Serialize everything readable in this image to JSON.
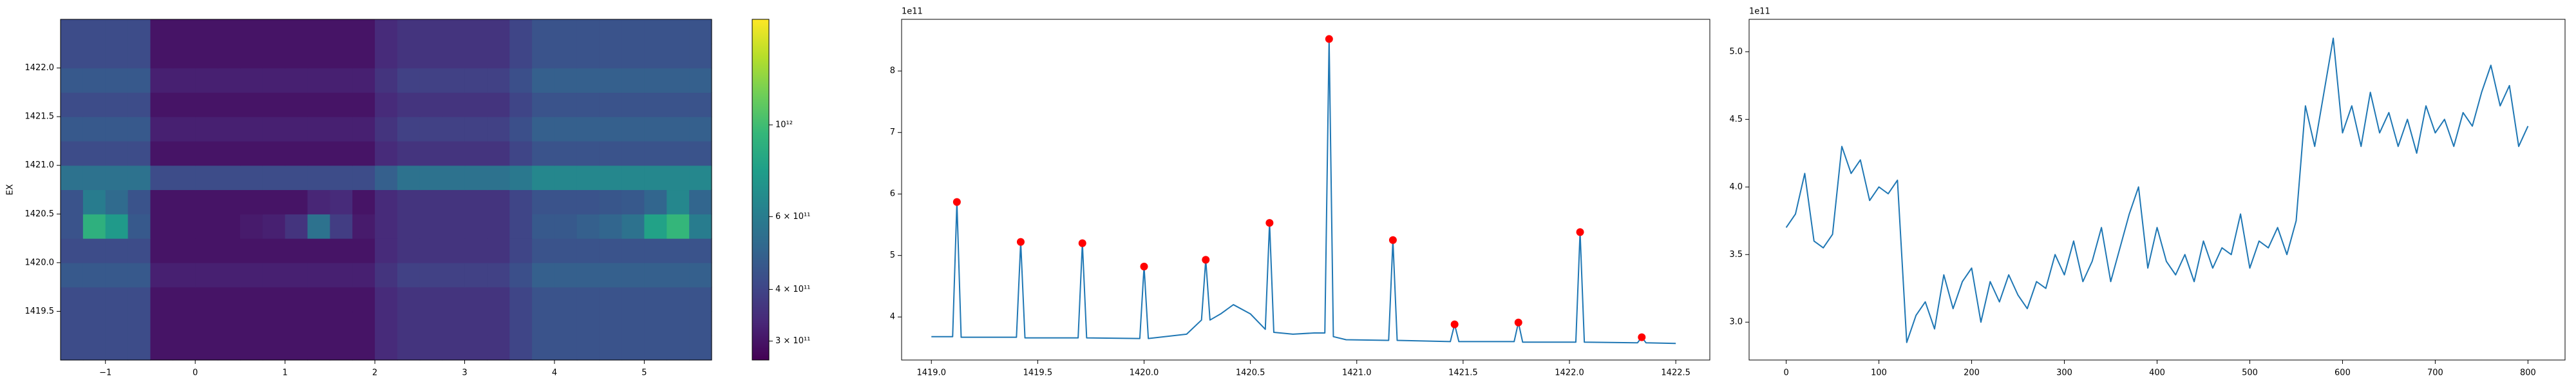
{
  "chart_data": [
    {
      "type": "heatmap",
      "ylabel": "EX",
      "colormap": "viridis",
      "xlim": [
        -1.5,
        5.75
      ],
      "ylim": [
        1419.0,
        1422.5
      ],
      "xticks": [
        {
          "value": -1,
          "label": "−1"
        },
        0,
        1,
        2,
        3,
        4,
        5
      ],
      "yticks": [
        1419.5,
        {
          "value": 1420,
          "label": "1420.0"
        },
        1420.5,
        {
          "value": 1421,
          "label": "1421.0"
        },
        1421.5,
        {
          "value": 1422,
          "label": "1422.0"
        }
      ],
      "z": [
        [
          420000000000.0,
          420000000000.0,
          420000000000.0,
          420000000000.0,
          300000000000.0,
          300000000000.0,
          300000000000.0,
          300000000000.0,
          300000000000.0,
          300000000000.0,
          300000000000.0,
          300000000000.0,
          300000000000.0,
          300000000000.0,
          340000000000.0,
          360000000000.0,
          360000000000.0,
          360000000000.0,
          360000000000.0,
          360000000000.0,
          400000000000.0,
          440000000000.0,
          440000000000.0,
          440000000000.0,
          440000000000.0,
          440000000000.0,
          440000000000.0,
          440000000000.0,
          440000000000.0
        ],
        [
          420000000000.0,
          420000000000.0,
          420000000000.0,
          420000000000.0,
          300000000000.0,
          300000000000.0,
          300000000000.0,
          300000000000.0,
          300000000000.0,
          300000000000.0,
          300000000000.0,
          300000000000.0,
          300000000000.0,
          300000000000.0,
          340000000000.0,
          360000000000.0,
          360000000000.0,
          360000000000.0,
          360000000000.0,
          360000000000.0,
          400000000000.0,
          440000000000.0,
          440000000000.0,
          440000000000.0,
          440000000000.0,
          440000000000.0,
          440000000000.0,
          440000000000.0,
          440000000000.0
        ],
        [
          420000000000.0,
          420000000000.0,
          420000000000.0,
          420000000000.0,
          300000000000.0,
          300000000000.0,
          300000000000.0,
          300000000000.0,
          300000000000.0,
          300000000000.0,
          300000000000.0,
          300000000000.0,
          300000000000.0,
          300000000000.0,
          340000000000.0,
          360000000000.0,
          360000000000.0,
          360000000000.0,
          360000000000.0,
          360000000000.0,
          400000000000.0,
          440000000000.0,
          440000000000.0,
          440000000000.0,
          440000000000.0,
          440000000000.0,
          440000000000.0,
          440000000000.0,
          440000000000.0
        ],
        [
          460000000000.0,
          460000000000.0,
          460000000000.0,
          460000000000.0,
          320000000000.0,
          320000000000.0,
          320000000000.0,
          320000000000.0,
          320000000000.0,
          320000000000.0,
          320000000000.0,
          320000000000.0,
          320000000000.0,
          320000000000.0,
          360000000000.0,
          390000000000.0,
          390000000000.0,
          390000000000.0,
          390000000000.0,
          390000000000.0,
          430000000000.0,
          480000000000.0,
          480000000000.0,
          480000000000.0,
          480000000000.0,
          480000000000.0,
          480000000000.0,
          480000000000.0,
          480000000000.0
        ],
        [
          420000000000.0,
          420000000000.0,
          420000000000.0,
          420000000000.0,
          300000000000.0,
          300000000000.0,
          300000000000.0,
          300000000000.0,
          300000000000.0,
          300000000000.0,
          300000000000.0,
          300000000000.0,
          300000000000.0,
          300000000000.0,
          340000000000.0,
          360000000000.0,
          360000000000.0,
          360000000000.0,
          360000000000.0,
          360000000000.0,
          400000000000.0,
          440000000000.0,
          440000000000.0,
          440000000000.0,
          440000000000.0,
          440000000000.0,
          440000000000.0,
          440000000000.0,
          440000000000.0
        ],
        [
          440000000000.0,
          900000000000.0,
          750000000000.0,
          460000000000.0,
          300000000000.0,
          300000000000.0,
          300000000000.0,
          300000000000.0,
          310000000000.0,
          320000000000.0,
          360000000000.0,
          550000000000.0,
          380000000000.0,
          310000000000.0,
          340000000000.0,
          360000000000.0,
          360000000000.0,
          360000000000.0,
          360000000000.0,
          360000000000.0,
          400000000000.0,
          460000000000.0,
          460000000000.0,
          480000000000.0,
          500000000000.0,
          550000000000.0,
          800000000000.0,
          950000000000.0,
          600000000000.0
        ],
        [
          440000000000.0,
          600000000000.0,
          520000000000.0,
          440000000000.0,
          300000000000.0,
          300000000000.0,
          300000000000.0,
          300000000000.0,
          300000000000.0,
          300000000000.0,
          300000000000.0,
          330000000000.0,
          340000000000.0,
          300000000000.0,
          340000000000.0,
          360000000000.0,
          360000000000.0,
          360000000000.0,
          360000000000.0,
          360000000000.0,
          400000000000.0,
          440000000000.0,
          440000000000.0,
          440000000000.0,
          450000000000.0,
          460000000000.0,
          500000000000.0,
          650000000000.0,
          500000000000.0
        ],
        [
          550000000000.0,
          550000000000.0,
          550000000000.0,
          550000000000.0,
          420000000000.0,
          420000000000.0,
          420000000000.0,
          420000000000.0,
          420000000000.0,
          420000000000.0,
          420000000000.0,
          420000000000.0,
          420000000000.0,
          420000000000.0,
          480000000000.0,
          550000000000.0,
          550000000000.0,
          550000000000.0,
          550000000000.0,
          550000000000.0,
          580000000000.0,
          650000000000.0,
          650000000000.0,
          650000000000.0,
          650000000000.0,
          650000000000.0,
          650000000000.0,
          650000000000.0,
          650000000000.0
        ],
        [
          420000000000.0,
          420000000000.0,
          420000000000.0,
          420000000000.0,
          300000000000.0,
          300000000000.0,
          300000000000.0,
          300000000000.0,
          300000000000.0,
          300000000000.0,
          300000000000.0,
          300000000000.0,
          300000000000.0,
          300000000000.0,
          340000000000.0,
          360000000000.0,
          360000000000.0,
          360000000000.0,
          360000000000.0,
          360000000000.0,
          400000000000.0,
          440000000000.0,
          440000000000.0,
          440000000000.0,
          440000000000.0,
          440000000000.0,
          440000000000.0,
          440000000000.0,
          440000000000.0
        ],
        [
          460000000000.0,
          460000000000.0,
          460000000000.0,
          460000000000.0,
          320000000000.0,
          320000000000.0,
          320000000000.0,
          320000000000.0,
          320000000000.0,
          320000000000.0,
          320000000000.0,
          320000000000.0,
          320000000000.0,
          320000000000.0,
          360000000000.0,
          390000000000.0,
          390000000000.0,
          390000000000.0,
          390000000000.0,
          390000000000.0,
          430000000000.0,
          480000000000.0,
          480000000000.0,
          480000000000.0,
          480000000000.0,
          480000000000.0,
          480000000000.0,
          480000000000.0,
          480000000000.0
        ],
        [
          420000000000.0,
          420000000000.0,
          420000000000.0,
          420000000000.0,
          300000000000.0,
          300000000000.0,
          300000000000.0,
          300000000000.0,
          300000000000.0,
          300000000000.0,
          300000000000.0,
          300000000000.0,
          300000000000.0,
          300000000000.0,
          340000000000.0,
          360000000000.0,
          360000000000.0,
          360000000000.0,
          360000000000.0,
          360000000000.0,
          400000000000.0,
          440000000000.0,
          440000000000.0,
          440000000000.0,
          440000000000.0,
          440000000000.0,
          440000000000.0,
          440000000000.0,
          440000000000.0
        ],
        [
          460000000000.0,
          460000000000.0,
          460000000000.0,
          460000000000.0,
          320000000000.0,
          320000000000.0,
          320000000000.0,
          320000000000.0,
          320000000000.0,
          320000000000.0,
          320000000000.0,
          320000000000.0,
          320000000000.0,
          320000000000.0,
          360000000000.0,
          390000000000.0,
          390000000000.0,
          390000000000.0,
          390000000000.0,
          390000000000.0,
          430000000000.0,
          480000000000.0,
          480000000000.0,
          480000000000.0,
          480000000000.0,
          480000000000.0,
          480000000000.0,
          480000000000.0,
          480000000000.0
        ],
        [
          420000000000.0,
          420000000000.0,
          420000000000.0,
          420000000000.0,
          300000000000.0,
          300000000000.0,
          300000000000.0,
          300000000000.0,
          300000000000.0,
          300000000000.0,
          300000000000.0,
          300000000000.0,
          300000000000.0,
          300000000000.0,
          340000000000.0,
          360000000000.0,
          360000000000.0,
          360000000000.0,
          360000000000.0,
          360000000000.0,
          400000000000.0,
          440000000000.0,
          440000000000.0,
          440000000000.0,
          440000000000.0,
          440000000000.0,
          440000000000.0,
          440000000000.0,
          440000000000.0
        ],
        [
          420000000000.0,
          420000000000.0,
          420000000000.0,
          420000000000.0,
          300000000000.0,
          300000000000.0,
          300000000000.0,
          300000000000.0,
          300000000000.0,
          300000000000.0,
          300000000000.0,
          300000000000.0,
          300000000000.0,
          300000000000.0,
          340000000000.0,
          360000000000.0,
          360000000000.0,
          360000000000.0,
          360000000000.0,
          360000000000.0,
          400000000000.0,
          440000000000.0,
          440000000000.0,
          440000000000.0,
          440000000000.0,
          440000000000.0,
          440000000000.0,
          440000000000.0,
          440000000000.0
        ]
      ],
      "colorbar": {
        "scale": "log",
        "zlim": [
          270000000000.0,
          1800000000000.0
        ],
        "ticks": [
          {
            "value": 300000000000.0,
            "label": "3 × 10¹¹"
          },
          {
            "value": 400000000000.0,
            "label": "4 × 10¹¹"
          },
          {
            "value": 600000000000.0,
            "label": "6 × 10¹¹"
          },
          {
            "value": 1000000000000.0,
            "label": "10¹²"
          }
        ]
      }
    },
    {
      "type": "line",
      "y_offset_label": "1e11",
      "xlim": [
        1418.86,
        1422.66
      ],
      "ylim": [
        3.3,
        8.84
      ],
      "xticks": [
        {
          "value": 1419,
          "label": "1419.0"
        },
        1419.5,
        {
          "value": 1420,
          "label": "1420.0"
        },
        1420.5,
        {
          "value": 1421,
          "label": "1421.0"
        },
        1421.5,
        {
          "value": 1422,
          "label": "1422.0"
        },
        1422.5
      ],
      "yticks": [
        4,
        5,
        6,
        7,
        8
      ],
      "series": [
        {
          "style": "line",
          "color": "#1f77b4",
          "x": [
            1419.0,
            1419.1,
            1419.12,
            1419.14,
            1419.4,
            1419.42,
            1419.44,
            1419.69,
            1419.71,
            1419.73,
            1419.98,
            1420.0,
            1420.02,
            1420.2,
            1420.27,
            1420.29,
            1420.31,
            1420.36,
            1420.42,
            1420.5,
            1420.57,
            1420.59,
            1420.61,
            1420.7,
            1420.8,
            1420.85,
            1420.87,
            1420.89,
            1420.95,
            1421.15,
            1421.17,
            1421.19,
            1421.44,
            1421.46,
            1421.48,
            1421.74,
            1421.76,
            1421.78,
            1422.03,
            1422.05,
            1422.07,
            1422.32,
            1422.34,
            1422.36,
            1422.5
          ],
          "y": [
            3.68,
            3.68,
            5.87,
            3.67,
            3.67,
            5.22,
            3.66,
            3.66,
            5.2,
            3.66,
            3.65,
            4.82,
            3.65,
            3.72,
            3.95,
            4.93,
            3.95,
            4.05,
            4.2,
            4.05,
            3.8,
            5.53,
            3.75,
            3.72,
            3.74,
            3.74,
            8.52,
            3.68,
            3.63,
            3.62,
            5.25,
            3.62,
            3.6,
            3.88,
            3.6,
            3.6,
            3.91,
            3.59,
            3.59,
            5.38,
            3.59,
            3.58,
            3.67,
            3.58,
            3.57
          ]
        },
        {
          "style": "points",
          "color": "#ff0000",
          "x": [
            1419.12,
            1419.42,
            1419.71,
            1420.0,
            1420.29,
            1420.59,
            1420.87,
            1421.17,
            1421.46,
            1421.76,
            1422.05,
            1422.34
          ],
          "y": [
            5.87,
            5.22,
            5.2,
            4.82,
            4.93,
            5.53,
            8.52,
            5.25,
            3.88,
            3.91,
            5.38,
            3.67
          ]
        }
      ]
    },
    {
      "type": "line",
      "y_offset_label": "1e11",
      "xlim": [
        -40,
        840
      ],
      "ylim": [
        2.72,
        5.24
      ],
      "xticks": [
        0,
        100,
        200,
        300,
        400,
        500,
        600,
        700,
        800
      ],
      "yticks": [
        {
          "value": 3,
          "label": "3.0"
        },
        3.5,
        {
          "value": 4,
          "label": "4.0"
        },
        4.5,
        {
          "value": 5,
          "label": "5.0"
        }
      ],
      "series": [
        {
          "style": "line",
          "color": "#1f77b4",
          "x": [
            0,
            10,
            20,
            30,
            40,
            50,
            60,
            70,
            80,
            90,
            100,
            110,
            120,
            130,
            140,
            150,
            160,
            170,
            180,
            190,
            200,
            210,
            220,
            230,
            240,
            250,
            260,
            270,
            280,
            290,
            300,
            310,
            320,
            330,
            340,
            350,
            360,
            370,
            380,
            390,
            400,
            410,
            420,
            430,
            440,
            450,
            460,
            470,
            480,
            490,
            500,
            510,
            520,
            530,
            540,
            550,
            560,
            570,
            580,
            590,
            600,
            610,
            620,
            630,
            640,
            650,
            660,
            670,
            680,
            690,
            700,
            710,
            720,
            730,
            740,
            750,
            760,
            770,
            780,
            790,
            800
          ],
          "y": [
            3.7,
            3.8,
            4.1,
            3.6,
            3.55,
            3.65,
            4.3,
            4.1,
            4.2,
            3.9,
            4.0,
            3.95,
            4.05,
            2.85,
            3.05,
            3.15,
            2.95,
            3.35,
            3.1,
            3.3,
            3.4,
            3.0,
            3.3,
            3.15,
            3.35,
            3.2,
            3.1,
            3.3,
            3.25,
            3.5,
            3.35,
            3.6,
            3.3,
            3.45,
            3.7,
            3.3,
            3.55,
            3.8,
            4.0,
            3.4,
            3.7,
            3.45,
            3.35,
            3.5,
            3.3,
            3.6,
            3.4,
            3.55,
            3.5,
            3.8,
            3.4,
            3.6,
            3.55,
            3.7,
            3.5,
            3.75,
            4.6,
            4.3,
            4.7,
            5.1,
            4.4,
            4.6,
            4.3,
            4.7,
            4.4,
            4.55,
            4.3,
            4.5,
            4.25,
            4.6,
            4.4,
            4.5,
            4.3,
            4.55,
            4.45,
            4.7,
            4.9,
            4.6,
            4.75,
            4.3,
            4.45
          ]
        }
      ]
    }
  ]
}
